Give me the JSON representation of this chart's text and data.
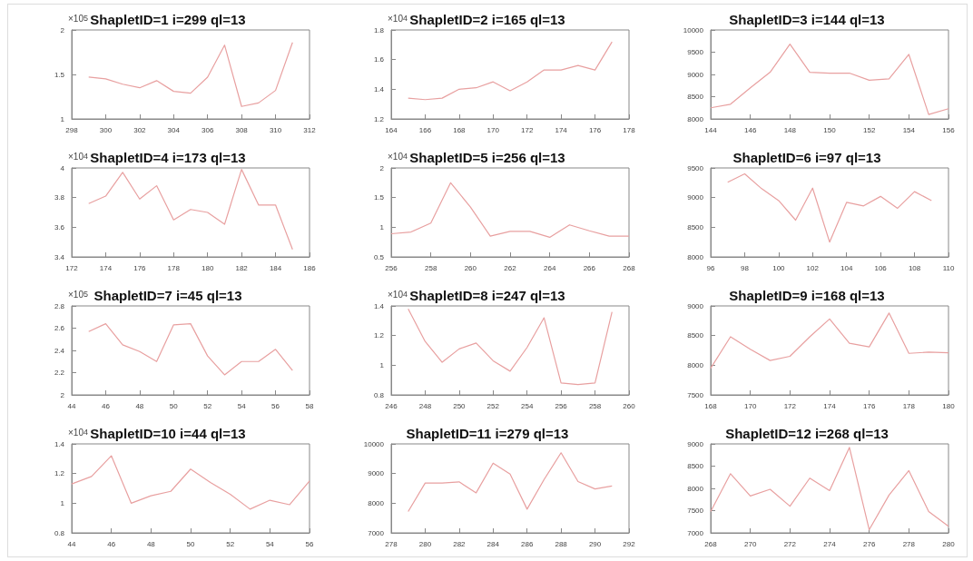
{
  "chart_data": [
    {
      "type": "line",
      "title": "ShapletID=1 i=299 ql=13",
      "x": [
        299,
        300,
        301,
        302,
        303,
        304,
        305,
        306,
        307,
        308,
        309,
        310,
        311
      ],
      "series": [
        {
          "color": "#e8a0a0",
          "values": [
            1.47,
            1.45,
            1.39,
            1.35,
            1.43,
            1.31,
            1.29,
            1.47,
            1.83,
            1.14,
            1.18,
            1.32,
            1.86
          ]
        }
      ],
      "xlim": [
        298,
        312
      ],
      "xticks": [
        298,
        300,
        302,
        304,
        306,
        308,
        310,
        312
      ],
      "ylim": [
        1,
        2
      ],
      "yticks": [
        1,
        1.5,
        2
      ],
      "annotations": [
        "×10$^{5}$"
      ],
      "marker": "none",
      "grid": false
    },
    {
      "type": "line",
      "title": "ShapletID=2 i=165 ql=13",
      "x": [
        165,
        166,
        167,
        168,
        169,
        170,
        171,
        172,
        173,
        174,
        175,
        176,
        177
      ],
      "series": [
        {
          "color": "#e8a0a0",
          "values": [
            1.34,
            1.33,
            1.34,
            1.4,
            1.41,
            1.45,
            1.39,
            1.45,
            1.53,
            1.53,
            1.56,
            1.53,
            1.72
          ]
        }
      ],
      "xlim": [
        164,
        178
      ],
      "xticks": [
        164,
        166,
        168,
        170,
        172,
        174,
        176,
        178
      ],
      "ylim": [
        1.2,
        1.8
      ],
      "yticks": [
        1.2,
        1.4,
        1.6,
        1.8
      ],
      "annotations": [
        "×10$^{4}$"
      ],
      "marker": "none",
      "grid": false
    },
    {
      "type": "line",
      "title": "ShapletID=3 i=144 ql=13",
      "x": [
        144,
        145,
        146,
        147,
        148,
        149,
        150,
        151,
        152,
        153,
        154,
        155,
        156
      ],
      "series": [
        {
          "color": "#e8a0a0",
          "values": [
            8250,
            8330,
            8700,
            9050,
            9680,
            9050,
            9030,
            9030,
            8870,
            8900,
            9450,
            8100,
            8230
          ]
        }
      ],
      "xlim": [
        144,
        156
      ],
      "xticks": [
        144,
        146,
        148,
        150,
        152,
        154,
        156
      ],
      "ylim": [
        8000,
        10000
      ],
      "yticks": [
        8000,
        8500,
        9000,
        9500,
        10000
      ],
      "marker": "none",
      "grid": false
    },
    {
      "type": "line",
      "title": "ShapletID=4 i=173 ql=13",
      "x": [
        173,
        174,
        175,
        176,
        177,
        178,
        179,
        180,
        181,
        182,
        183,
        184,
        185
      ],
      "series": [
        {
          "color": "#e8a0a0",
          "values": [
            3.76,
            3.81,
            3.97,
            3.79,
            3.88,
            3.65,
            3.72,
            3.7,
            3.62,
            3.99,
            3.75,
            3.75,
            3.45
          ]
        }
      ],
      "xlim": [
        172,
        186
      ],
      "xticks": [
        172,
        174,
        176,
        178,
        180,
        182,
        184,
        186
      ],
      "ylim": [
        3.4,
        4
      ],
      "yticks": [
        3.4,
        3.6,
        3.8,
        4
      ],
      "annotations": [
        "×10$^{4}$"
      ],
      "marker": "none",
      "grid": false
    },
    {
      "type": "line",
      "title": "ShapletID=5 i=256 ql=13",
      "x": [
        256,
        257,
        258,
        259,
        260,
        261,
        262,
        263,
        264,
        265,
        266,
        267,
        268
      ],
      "series": [
        {
          "color": "#e8a0a0",
          "values": [
            0.89,
            0.92,
            1.07,
            1.75,
            1.34,
            0.85,
            0.93,
            0.93,
            0.83,
            1.04,
            0.94,
            0.85,
            0.85
          ]
        }
      ],
      "xlim": [
        256,
        268
      ],
      "xticks": [
        256,
        258,
        260,
        262,
        264,
        266,
        268
      ],
      "ylim": [
        0.5,
        2
      ],
      "yticks": [
        0.5,
        1,
        1.5,
        2
      ],
      "annotations": [
        "×10$^{4}$"
      ],
      "marker": "none",
      "grid": false
    },
    {
      "type": "line",
      "title": "ShapletID=6 i=97 ql=13",
      "x": [
        97,
        98,
        99,
        100,
        101,
        102,
        103,
        104,
        105,
        106,
        107,
        108,
        109
      ],
      "series": [
        {
          "color": "#e8a0a0",
          "values": [
            9260,
            9400,
            9150,
            8950,
            8620,
            9160,
            8250,
            8920,
            8860,
            9020,
            8820,
            9100,
            8950
          ]
        }
      ],
      "xlim": [
        96,
        110
      ],
      "xticks": [
        96,
        98,
        100,
        102,
        104,
        106,
        108,
        110
      ],
      "ylim": [
        8000,
        9500
      ],
      "yticks": [
        8000,
        8500,
        9000,
        9500
      ],
      "marker": "none",
      "grid": false
    },
    {
      "type": "line",
      "title": "ShapletID=7 i=45 ql=13",
      "x": [
        45,
        46,
        47,
        48,
        49,
        50,
        51,
        52,
        53,
        54,
        55,
        56,
        57
      ],
      "series": [
        {
          "color": "#e8a0a0",
          "values": [
            2.57,
            2.64,
            2.45,
            2.39,
            2.3,
            2.63,
            2.64,
            2.35,
            2.18,
            2.3,
            2.3,
            2.41,
            2.22
          ]
        }
      ],
      "xlim": [
        44,
        58
      ],
      "xticks": [
        44,
        46,
        48,
        50,
        52,
        54,
        56,
        58
      ],
      "ylim": [
        2,
        2.8
      ],
      "yticks": [
        2,
        2.2,
        2.4,
        2.6,
        2.8
      ],
      "annotations": [
        "×10$^{5}$"
      ],
      "marker": "none",
      "grid": false
    },
    {
      "type": "line",
      "title": "ShapletID=8 i=247 ql=13",
      "x": [
        247,
        248,
        249,
        250,
        251,
        252,
        253,
        254,
        255,
        256,
        257,
        258,
        259
      ],
      "series": [
        {
          "color": "#e8a0a0",
          "values": [
            1.38,
            1.16,
            1.02,
            1.11,
            1.15,
            1.03,
            0.96,
            1.12,
            1.32,
            0.88,
            0.87,
            0.88,
            1.36
          ]
        }
      ],
      "xlim": [
        246,
        260
      ],
      "xticks": [
        246,
        248,
        250,
        252,
        254,
        256,
        258,
        260
      ],
      "ylim": [
        0.8,
        1.4
      ],
      "yticks": [
        0.8,
        1,
        1.2,
        1.4
      ],
      "annotations": [
        "×10$^{4}$"
      ],
      "marker": "none",
      "grid": false
    },
    {
      "type": "line",
      "title": "ShapletID=9 i=168 ql=13",
      "x": [
        168,
        169,
        170,
        171,
        172,
        173,
        174,
        175,
        176,
        177,
        178,
        179,
        180
      ],
      "series": [
        {
          "color": "#e8a0a0",
          "values": [
            7950,
            8480,
            8270,
            8080,
            8150,
            8480,
            8780,
            8370,
            8310,
            8880,
            8200,
            8220,
            8210
          ]
        }
      ],
      "xlim": [
        168,
        180
      ],
      "xticks": [
        168,
        170,
        172,
        174,
        176,
        178,
        180
      ],
      "ylim": [
        7500,
        9000
      ],
      "yticks": [
        7500,
        8000,
        8500,
        9000
      ],
      "marker": "none",
      "grid": false
    },
    {
      "type": "line",
      "title": "ShapletID=10 i=44 ql=13",
      "x": [
        44,
        45,
        46,
        47,
        48,
        49,
        50,
        51,
        52,
        53,
        54,
        55,
        56
      ],
      "series": [
        {
          "color": "#e8a0a0",
          "values": [
            1.13,
            1.18,
            1.32,
            1.0,
            1.05,
            1.08,
            1.23,
            1.14,
            1.06,
            0.96,
            1.02,
            0.99,
            1.15
          ]
        }
      ],
      "xlim": [
        44,
        56
      ],
      "xticks": [
        44,
        46,
        48,
        50,
        52,
        54,
        56
      ],
      "ylim": [
        0.8,
        1.4
      ],
      "yticks": [
        0.8,
        1,
        1.2,
        1.4
      ],
      "annotations": [
        "×10$^{4}$"
      ],
      "marker": "none",
      "grid": false
    },
    {
      "type": "line",
      "title": "ShapletID=11 i=279 ql=13",
      "x": [
        279,
        280,
        281,
        282,
        283,
        284,
        285,
        286,
        287,
        288,
        289,
        290,
        291
      ],
      "series": [
        {
          "color": "#e8a0a0",
          "values": [
            7720,
            8680,
            8680,
            8720,
            8350,
            9350,
            8980,
            7800,
            8800,
            9700,
            8730,
            8480,
            8580
          ]
        }
      ],
      "xlim": [
        278,
        292
      ],
      "xticks": [
        278,
        280,
        282,
        284,
        286,
        288,
        290,
        292
      ],
      "ylim": [
        7000,
        10000
      ],
      "yticks": [
        7000,
        8000,
        9000,
        10000
      ],
      "marker": "none",
      "grid": false
    },
    {
      "type": "line",
      "title": "ShapletID=12 i=268 ql=13",
      "x": [
        268,
        269,
        270,
        271,
        272,
        273,
        274,
        275,
        276,
        277,
        278,
        279,
        280
      ],
      "series": [
        {
          "color": "#e8a0a0",
          "values": [
            7480,
            8330,
            7830,
            7980,
            7600,
            8230,
            7950,
            8920,
            7070,
            7850,
            8400,
            7480,
            7150
          ]
        }
      ],
      "xlim": [
        268,
        280
      ],
      "xticks": [
        268,
        270,
        272,
        274,
        276,
        278,
        280
      ],
      "ylim": [
        7000,
        9000
      ],
      "yticks": [
        7000,
        7500,
        8000,
        8500,
        9000
      ],
      "marker": "none",
      "grid": false
    }
  ]
}
